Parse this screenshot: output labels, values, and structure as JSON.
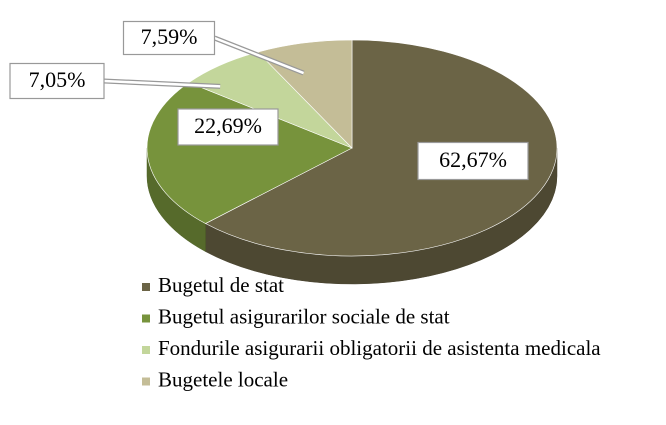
{
  "chart_data": {
    "type": "pie",
    "three_d": true,
    "categories": [
      "Bugetul de stat",
      "Bugetul asigurarilor sociale de stat",
      "Fondurile asigurarii obligatorii de asistenta medicala",
      "Bugetele locale"
    ],
    "values": [
      62.67,
      22.69,
      7.05,
      7.59
    ],
    "value_labels": [
      "62,67%",
      "22,69%",
      "7,05%",
      "7,59%"
    ],
    "colors": [
      "#6b6446",
      "#77933c",
      "#c3d69b",
      "#c4bd97"
    ],
    "legend": "bottom"
  }
}
